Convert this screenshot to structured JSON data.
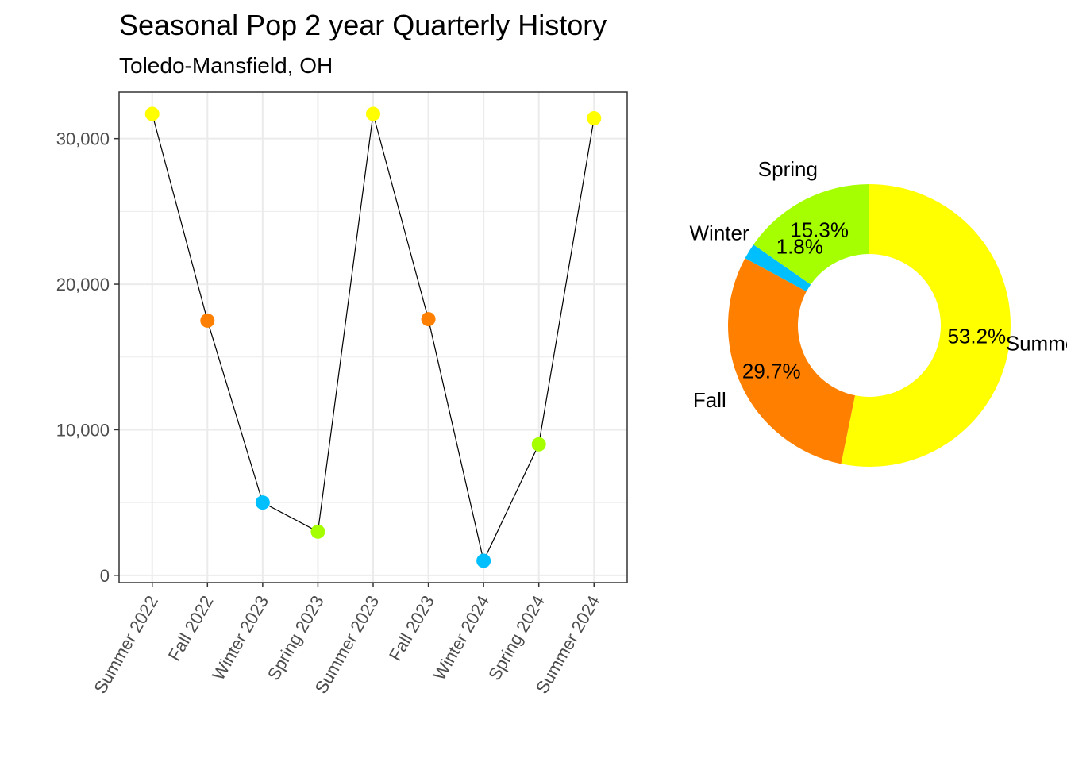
{
  "title": "Seasonal Pop 2 year Quarterly History",
  "subtitle": "Toledo-Mansfield, OH",
  "colors": {
    "Summer": "#FFFF00",
    "Fall": "#FF8000",
    "Winter": "#00BFFF",
    "Spring": "#A6FF00",
    "line": "#000000",
    "grid": "#EBEBEB",
    "panel_border": "#333333"
  },
  "chart_data": [
    {
      "type": "line",
      "categories": [
        "Summer 2022",
        "Fall 2022",
        "Winter 2023",
        "Spring 2023",
        "Summer 2023",
        "Fall 2023",
        "Winter 2024",
        "Spring 2024",
        "Summer 2024"
      ],
      "seasons": [
        "Summer",
        "Fall",
        "Winter",
        "Spring",
        "Summer",
        "Fall",
        "Winter",
        "Spring",
        "Summer"
      ],
      "values": [
        31700,
        17500,
        5000,
        3000,
        31700,
        17600,
        1000,
        9000,
        31400
      ],
      "ylim": [
        -500,
        33200
      ],
      "yticks": [
        0,
        10000,
        20000,
        30000
      ],
      "ytick_labels": [
        "0",
        "10,000",
        "20,000",
        "30,000"
      ],
      "grid": true,
      "legend": "none"
    },
    {
      "type": "pie",
      "donut": true,
      "categories": [
        "Summer",
        "Fall",
        "Winter",
        "Spring"
      ],
      "values": [
        53.2,
        29.7,
        1.8,
        15.3
      ],
      "labels": [
        "53.2%",
        "29.7%",
        "1.8%",
        "15.3%"
      ]
    }
  ]
}
